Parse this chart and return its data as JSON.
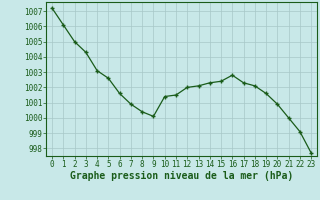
{
  "x": [
    0,
    1,
    2,
    3,
    4,
    5,
    6,
    7,
    8,
    9,
    10,
    11,
    12,
    13,
    14,
    15,
    16,
    17,
    18,
    19,
    20,
    21,
    22,
    23
  ],
  "y": [
    1007.2,
    1006.1,
    1005.0,
    1004.3,
    1003.1,
    1002.6,
    1001.6,
    1000.9,
    1000.4,
    1000.1,
    1001.4,
    1001.5,
    1002.0,
    1002.1,
    1002.3,
    1002.4,
    1002.8,
    1002.3,
    1002.1,
    1001.6,
    1000.9,
    1000.0,
    999.1,
    997.7
  ],
  "line_color": "#1a5c1a",
  "marker_color": "#1a5c1a",
  "bg_color": "#c8e8e8",
  "grid_color": "#a8c8c8",
  "title": "Graphe pression niveau de la mer (hPa)",
  "xlabel_ticks": [
    "0",
    "1",
    "2",
    "3",
    "4",
    "5",
    "6",
    "7",
    "8",
    "9",
    "10",
    "11",
    "12",
    "13",
    "14",
    "15",
    "16",
    "17",
    "18",
    "19",
    "20",
    "21",
    "22",
    "23"
  ],
  "ylim": [
    997.5,
    1007.6
  ],
  "yticks": [
    998,
    999,
    1000,
    1001,
    1002,
    1003,
    1004,
    1005,
    1006,
    1007
  ],
  "title_color": "#1a5c1a",
  "tick_fontsize": 5.5,
  "title_fontsize": 7.0
}
